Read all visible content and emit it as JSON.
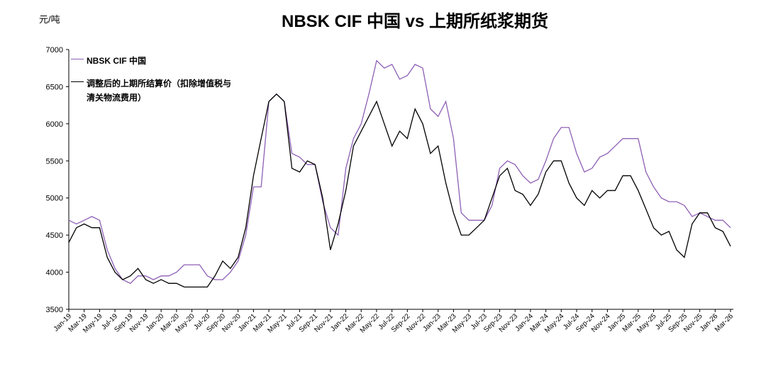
{
  "chart_data": {
    "type": "line",
    "title": "NBSK CIF 中国 vs 上期所纸浆期货",
    "y_label": "元/吨",
    "categories": [
      "Jan-19",
      null,
      "Mar-19",
      null,
      "May-19",
      null,
      "Jul-19",
      null,
      "Sep-19",
      null,
      "Nov-19",
      null,
      "Jan-20",
      null,
      "Mar-20",
      null,
      "May-20",
      null,
      "Jul-20",
      null,
      "Sep-20",
      null,
      "Nov-20",
      null,
      "Jan-21",
      null,
      "Mar-21",
      null,
      "May-21",
      null,
      "Jul-21",
      null,
      "Sep-21",
      null,
      "Nov-21",
      null,
      "Jan-22",
      null,
      "Mar-22",
      null,
      "May-22",
      null,
      "Jul-22",
      null,
      "Sep-22",
      null,
      "Nov-22",
      null,
      "Jan-23",
      null,
      "Mar-23",
      null,
      "May-23",
      null,
      "Jul-23",
      null,
      "Sep-23",
      null,
      "Nov-23",
      null,
      "Jan-24",
      null,
      "Mar-24",
      null,
      "May-24",
      null,
      "Jul-24",
      null,
      "Sep-24",
      null,
      "Nov-24",
      null,
      "Jan-25",
      null,
      "Mar-25",
      null,
      "May-25",
      null,
      "Jul-25",
      null,
      "Sep-25",
      null,
      "Nov-25",
      null,
      "Jan-26",
      null,
      "Mar-26"
    ],
    "series": [
      {
        "name": "NBSK CIF 中国",
        "color": "#8e5fb5",
        "values": [
          4700,
          4650,
          4700,
          4750,
          4700,
          4300,
          4050,
          3900,
          3850,
          3950,
          3950,
          3900,
          3950,
          3950,
          4000,
          4100,
          4100,
          4100,
          3950,
          3900,
          3900,
          4000,
          4150,
          4500,
          5150,
          5150,
          6300,
          6400,
          6300,
          5600,
          5550,
          5450,
          5450,
          4950,
          4600,
          4500,
          5400,
          5800,
          6000,
          6400,
          6850,
          6750,
          6800,
          6600,
          6650,
          6800,
          6750,
          6200,
          6100,
          6300,
          5800,
          4800,
          4700,
          4700,
          4700,
          4900,
          5400,
          5500,
          5450,
          5300,
          5200,
          5250,
          5500,
          5800,
          5950,
          5950,
          5600,
          5350,
          5400,
          5550,
          5600,
          5700,
          5800,
          5800,
          5800,
          5350,
          5150,
          5000,
          4950,
          4950,
          4900,
          4750,
          4800,
          4750,
          4700,
          4700,
          4600
        ]
      },
      {
        "name": "调整后的上期所结算价（扣除增值税与清关物流费用）",
        "color": "#000000",
        "values": [
          4400,
          4600,
          4650,
          4600,
          4600,
          4200,
          4000,
          3900,
          3950,
          4050,
          3900,
          3850,
          3900,
          3850,
          3850,
          3800,
          3800,
          3800,
          3800,
          3950,
          4150,
          4050,
          4200,
          4600,
          5300,
          5800,
          6300,
          6400,
          6300,
          5400,
          5350,
          5500,
          5450,
          5000,
          4300,
          4650,
          5100,
          5700,
          5900,
          6100,
          6300,
          6000,
          5700,
          5900,
          5800,
          6200,
          6000,
          5600,
          5700,
          5200,
          4800,
          4500,
          4500,
          4600,
          4700,
          5000,
          5300,
          5400,
          5100,
          5050,
          4900,
          5050,
          5350,
          5500,
          5500,
          5200,
          5000,
          4900,
          5100,
          5000,
          5100,
          5100,
          5300,
          5300,
          5100,
          4850,
          4600,
          4500,
          4550,
          4300,
          4200,
          4650,
          4800,
          4800,
          4600,
          4550,
          4350
        ]
      }
    ],
    "ylim": [
      3500,
      7000
    ],
    "yticks": [
      3500,
      4000,
      4500,
      5000,
      5500,
      6000,
      6500,
      7000
    ],
    "legend": "upper left"
  }
}
